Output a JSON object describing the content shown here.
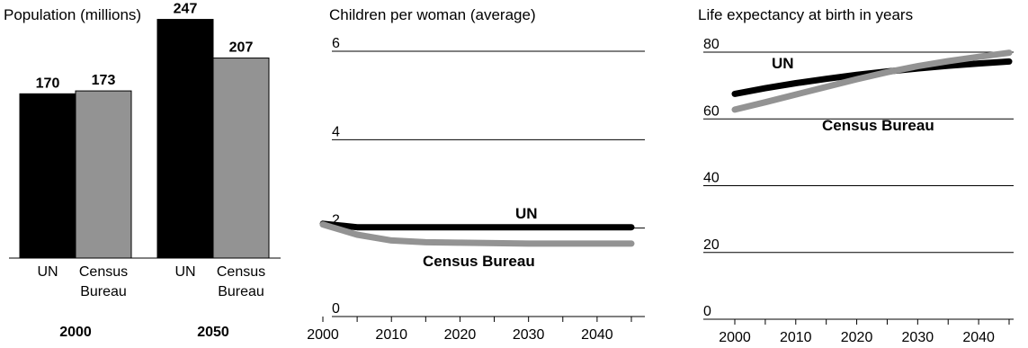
{
  "chart_data": [
    {
      "type": "bar",
      "title": "Population (millions)",
      "groups": [
        "2000",
        "2050"
      ],
      "categories": [
        "UN",
        "Census Bureau"
      ],
      "category_labels": [
        [
          "UN"
        ],
        [
          "Census",
          "Bureau"
        ]
      ],
      "series": [
        {
          "group": "2000",
          "values": [
            170,
            173
          ]
        },
        {
          "group": "2050",
          "values": [
            247,
            207
          ]
        }
      ],
      "ylim": [
        0,
        260
      ],
      "colors": {
        "UN": "#000000",
        "Census Bureau": "#939393"
      }
    },
    {
      "type": "line",
      "title": "Children per woman (average)",
      "x": [
        2000,
        2005,
        2010,
        2015,
        2020,
        2025,
        2030,
        2035,
        2040,
        2045
      ],
      "xticks": [
        "2000",
        "2010",
        "2020",
        "2030",
        "2040"
      ],
      "yticks": [
        "0",
        "2",
        "4",
        "6"
      ],
      "xlim": [
        2000,
        2045
      ],
      "ylim": [
        0,
        6
      ],
      "grid": true,
      "series": [
        {
          "name": "UN",
          "color": "#000000",
          "values": [
            2.1,
            2.02,
            2.02,
            2.02,
            2.02,
            2.02,
            2.02,
            2.02,
            2.02,
            2.02
          ]
        },
        {
          "name": "Census Bureau",
          "color": "#939393",
          "values": [
            2.08,
            1.85,
            1.72,
            1.68,
            1.67,
            1.66,
            1.65,
            1.65,
            1.65,
            1.65
          ]
        }
      ]
    },
    {
      "type": "line",
      "title": "Life expectancy at birth in years",
      "x": [
        2000,
        2005,
        2010,
        2015,
        2020,
        2025,
        2030,
        2035,
        2040,
        2045
      ],
      "xticks": [
        "2000",
        "2010",
        "2020",
        "2030",
        "2040"
      ],
      "yticks": [
        "0",
        "20",
        "40",
        "60",
        "80"
      ],
      "xlim": [
        2000,
        2045
      ],
      "ylim": [
        0,
        80
      ],
      "grid": true,
      "series": [
        {
          "name": "UN",
          "color": "#000000",
          "values": [
            67.5,
            69.2,
            70.7,
            72.0,
            73.2,
            74.2,
            75.1,
            75.9,
            76.6,
            77.2
          ]
        },
        {
          "name": "Census Bureau",
          "color": "#939393",
          "values": [
            62.8,
            65.0,
            67.3,
            69.6,
            71.9,
            74.0,
            75.8,
            77.3,
            78.6,
            79.8
          ]
        }
      ]
    }
  ]
}
